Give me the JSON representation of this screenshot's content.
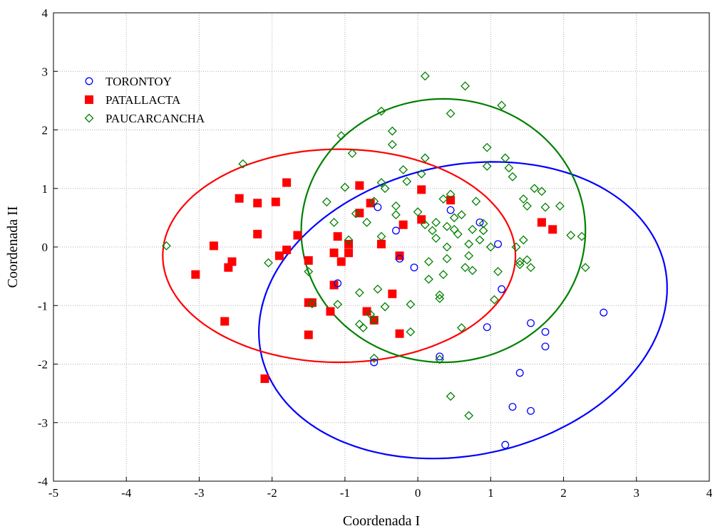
{
  "chart_data": {
    "type": "scatter",
    "xlabel": "Coordenada I",
    "ylabel": "Coordenada II",
    "xlim": [
      -5,
      4
    ],
    "ylim": [
      -4,
      4
    ],
    "xticks": [
      -5,
      -4,
      -3,
      -2,
      -1,
      0,
      1,
      2,
      3,
      4
    ],
    "yticks": [
      -4,
      -3,
      -2,
      -1,
      0,
      1,
      2,
      3,
      4
    ],
    "grid": true,
    "legend_position": "top-left",
    "series": [
      {
        "name": "TORONTOY",
        "marker": "open-circle",
        "color": "#0000ff",
        "points": [
          [
            -0.55,
            0.68
          ],
          [
            -0.3,
            0.28
          ],
          [
            -0.25,
            -0.2
          ],
          [
            -0.05,
            -0.35
          ],
          [
            0.45,
            0.63
          ],
          [
            0.85,
            0.42
          ],
          [
            1.1,
            0.05
          ],
          [
            -1.1,
            -0.62
          ],
          [
            1.15,
            -0.72
          ],
          [
            0.95,
            -1.37
          ],
          [
            1.55,
            -1.3
          ],
          [
            1.75,
            -1.45
          ],
          [
            1.75,
            -1.7
          ],
          [
            2.55,
            -1.12
          ],
          [
            -0.6,
            -1.97
          ],
          [
            0.3,
            -1.87
          ],
          [
            1.4,
            -2.15
          ],
          [
            1.3,
            -2.73
          ],
          [
            1.55,
            -2.8
          ],
          [
            1.2,
            -3.38
          ]
        ]
      },
      {
        "name": "PATALLACTA",
        "marker": "filled-square",
        "color": "#ff0000",
        "points": [
          [
            -3.05,
            -0.47
          ],
          [
            -2.8,
            0.02
          ],
          [
            -2.6,
            -0.35
          ],
          [
            -2.55,
            -0.25
          ],
          [
            -2.65,
            -1.27
          ],
          [
            -2.45,
            0.83
          ],
          [
            -2.2,
            0.75
          ],
          [
            -2.2,
            0.22
          ],
          [
            -1.95,
            0.77
          ],
          [
            -1.8,
            1.1
          ],
          [
            -1.9,
            -0.15
          ],
          [
            -1.8,
            -0.05
          ],
          [
            -1.65,
            0.2
          ],
          [
            -1.5,
            -0.23
          ],
          [
            -1.5,
            -0.95
          ],
          [
            -1.45,
            -0.95
          ],
          [
            -1.5,
            -1.5
          ],
          [
            -1.2,
            -1.1
          ],
          [
            -1.15,
            -0.65
          ],
          [
            -1.15,
            -0.1
          ],
          [
            -1.1,
            0.18
          ],
          [
            -1.05,
            -0.25
          ],
          [
            -0.95,
            -0.1
          ],
          [
            -0.95,
            0.05
          ],
          [
            -0.8,
            1.05
          ],
          [
            -0.8,
            0.58
          ],
          [
            -0.65,
            0.75
          ],
          [
            -0.7,
            -1.1
          ],
          [
            -0.6,
            -1.25
          ],
          [
            -0.5,
            0.05
          ],
          [
            -0.35,
            -0.8
          ],
          [
            -0.2,
            0.38
          ],
          [
            -0.25,
            -0.15
          ],
          [
            -0.25,
            -1.48
          ],
          [
            0.05,
            0.98
          ],
          [
            0.05,
            0.47
          ],
          [
            0.45,
            0.8
          ],
          [
            1.7,
            0.42
          ],
          [
            1.85,
            0.3
          ],
          [
            -2.1,
            -2.25
          ]
        ]
      },
      {
        "name": "PAUCARCANCHA",
        "marker": "open-diamond",
        "color": "#008000",
        "points": [
          [
            -3.45,
            0.02
          ],
          [
            -2.4,
            1.42
          ],
          [
            -2.05,
            -0.27
          ],
          [
            -1.5,
            -0.42
          ],
          [
            -1.45,
            -0.97
          ],
          [
            -1.25,
            0.77
          ],
          [
            -1.15,
            0.42
          ],
          [
            -1.1,
            -0.98
          ],
          [
            -1.05,
            1.9
          ],
          [
            -1.0,
            1.02
          ],
          [
            -0.95,
            0.12
          ],
          [
            -0.9,
            1.6
          ],
          [
            -0.85,
            0.57
          ],
          [
            -0.8,
            -0.78
          ],
          [
            -0.75,
            -1.38
          ],
          [
            -0.8,
            -1.32
          ],
          [
            -0.7,
            0.42
          ],
          [
            -0.65,
            -1.15
          ],
          [
            -0.6,
            0.78
          ],
          [
            -0.6,
            -1.25
          ],
          [
            -0.5,
            1.1
          ],
          [
            -0.45,
            1.0
          ],
          [
            -0.5,
            2.32
          ],
          [
            -0.55,
            -0.72
          ],
          [
            -0.5,
            0.18
          ],
          [
            -0.45,
            -1.02
          ],
          [
            -0.35,
            1.75
          ],
          [
            -0.35,
            1.98
          ],
          [
            -0.3,
            0.55
          ],
          [
            -0.3,
            0.7
          ],
          [
            -0.2,
            1.32
          ],
          [
            -0.15,
            1.12
          ],
          [
            -0.1,
            -0.98
          ],
          [
            -0.1,
            -1.45
          ],
          [
            0.0,
            0.6
          ],
          [
            0.05,
            1.25
          ],
          [
            0.1,
            1.52
          ],
          [
            0.1,
            0.38
          ],
          [
            0.1,
            2.92
          ],
          [
            0.15,
            -0.25
          ],
          [
            0.15,
            -0.55
          ],
          [
            0.2,
            0.28
          ],
          [
            0.25,
            0.15
          ],
          [
            0.25,
            0.42
          ],
          [
            0.3,
            -0.82
          ],
          [
            0.3,
            -0.88
          ],
          [
            0.35,
            0.82
          ],
          [
            0.35,
            -0.47
          ],
          [
            0.4,
            -0.2
          ],
          [
            0.4,
            0.0
          ],
          [
            0.45,
            0.9
          ],
          [
            0.45,
            2.28
          ],
          [
            0.5,
            0.5
          ],
          [
            0.5,
            0.3
          ],
          [
            0.55,
            0.22
          ],
          [
            0.6,
            0.55
          ],
          [
            0.65,
            -0.35
          ],
          [
            0.65,
            2.75
          ],
          [
            0.7,
            0.05
          ],
          [
            0.7,
            -0.15
          ],
          [
            0.75,
            0.3
          ],
          [
            0.75,
            -0.4
          ],
          [
            0.8,
            0.78
          ],
          [
            0.85,
            0.12
          ],
          [
            0.9,
            0.4
          ],
          [
            0.9,
            0.28
          ],
          [
            0.95,
            1.7
          ],
          [
            0.95,
            1.38
          ],
          [
            1.0,
            0.0
          ],
          [
            1.05,
            -0.9
          ],
          [
            1.1,
            -0.42
          ],
          [
            1.15,
            2.42
          ],
          [
            1.2,
            1.52
          ],
          [
            1.25,
            1.35
          ],
          [
            1.3,
            1.2
          ],
          [
            1.35,
            0.0
          ],
          [
            1.4,
            -0.3
          ],
          [
            1.4,
            -0.25
          ],
          [
            1.45,
            0.82
          ],
          [
            1.5,
            0.7
          ],
          [
            1.55,
            -0.35
          ],
          [
            1.6,
            1.0
          ],
          [
            1.7,
            0.95
          ],
          [
            1.75,
            0.68
          ],
          [
            1.95,
            0.7
          ],
          [
            2.1,
            0.2
          ],
          [
            2.25,
            0.18
          ],
          [
            2.3,
            -0.35
          ],
          [
            0.3,
            -1.92
          ],
          [
            -0.6,
            -1.9
          ],
          [
            0.45,
            -2.55
          ],
          [
            0.7,
            -2.88
          ],
          [
            0.6,
            -1.38
          ],
          [
            1.45,
            0.12
          ],
          [
            1.5,
            -0.22
          ],
          [
            0.4,
            0.35
          ]
        ]
      }
    ],
    "ellipses": [
      {
        "series": "TORONTOY",
        "color": "#0000ff",
        "center": [
          0.62,
          -1.08
        ],
        "semi_axes": [
          2.42,
          2.9
        ],
        "rotation_deg": 118
      },
      {
        "series": "PATALLACTA",
        "color": "#ff0000",
        "center": [
          -1.08,
          -0.15
        ],
        "semi_axes": [
          2.42,
          1.82
        ],
        "rotation_deg": 0
      },
      {
        "series": "PAUCARCANCHA",
        "color": "#008000",
        "center": [
          0.35,
          0.28
        ],
        "semi_axes": [
          1.95,
          2.25
        ],
        "rotation_deg": 0
      }
    ]
  }
}
